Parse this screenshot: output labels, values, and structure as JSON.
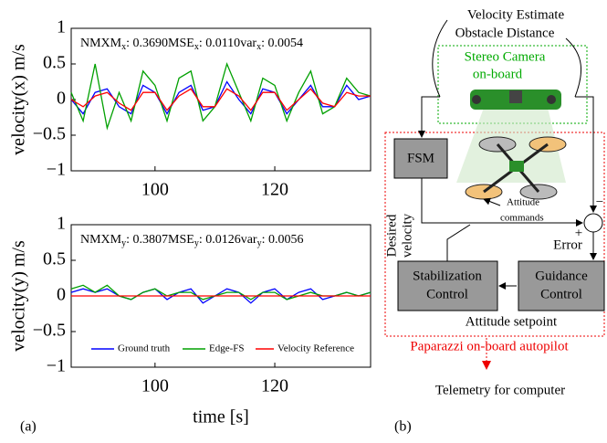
{
  "chart_data": [
    {
      "type": "line",
      "y_label": "velocity(x) m/s",
      "annotation": [
        {
          "name": "NMXM",
          "sub": "x",
          "value": ": 0.3690"
        },
        {
          "name": "MSE",
          "sub": "x",
          "value": ": 0.0110"
        },
        {
          "name": "var",
          "sub": "x",
          "value": ": 0.0054"
        }
      ],
      "x": [
        86,
        88,
        90,
        92,
        94,
        96,
        98,
        100,
        102,
        104,
        106,
        108,
        110,
        112,
        114,
        116,
        118,
        120,
        122,
        124,
        126,
        128,
        130,
        132,
        134,
        136
      ],
      "xlim": [
        86,
        136
      ],
      "xticks": [
        100,
        120
      ],
      "ylim": [
        -1,
        1
      ],
      "yticks": [
        {
          "value": -1,
          "label": "−1"
        },
        {
          "value": -0.5,
          "label": "−0.5"
        },
        0,
        0.5,
        1
      ],
      "series": [
        {
          "name": "Ground truth",
          "color": "#0000ff",
          "values": [
            0,
            -0.2,
            0.1,
            0.15,
            -0.1,
            -0.2,
            0.2,
            0.1,
            -0.2,
            0.1,
            0.2,
            -0.15,
            -0.1,
            0.25,
            0,
            -0.2,
            0.15,
            0.1,
            -0.2,
            0,
            0.2,
            -0.1,
            -0.1,
            0.2,
            0,
            0.05
          ]
        },
        {
          "name": "Edge-FS",
          "color": "#00a000",
          "values": [
            0.1,
            -0.3,
            0.5,
            -0.4,
            0.1,
            -0.3,
            0.4,
            0.2,
            -0.3,
            0.3,
            0.4,
            -0.3,
            -0.1,
            0.5,
            0.1,
            -0.3,
            0.3,
            0.2,
            -0.3,
            0.1,
            0.4,
            -0.2,
            -0.1,
            0.3,
            0.1,
            0.05
          ]
        },
        {
          "name": "Velocity Reference",
          "color": "#ff0000",
          "values": [
            0,
            -0.1,
            0.05,
            0.1,
            -0.05,
            -0.15,
            0.1,
            0.1,
            -0.15,
            0.05,
            0.15,
            -0.1,
            -0.1,
            0.15,
            0.05,
            -0.15,
            0.1,
            0.1,
            -0.15,
            0,
            0.15,
            -0.05,
            -0.1,
            0.1,
            0.05,
            0.05
          ]
        }
      ]
    },
    {
      "type": "line",
      "y_label": "velocity(y) m/s",
      "x_label": "time [s]",
      "legend": "lower center",
      "annotation": [
        {
          "name": "NMXM",
          "sub": "y",
          "value": ": 0.3807"
        },
        {
          "name": "MSE",
          "sub": "y",
          "value": ": 0.0126"
        },
        {
          "name": "var",
          "sub": "y",
          "value": ": 0.0056"
        }
      ],
      "x": [
        86,
        88,
        90,
        92,
        94,
        96,
        98,
        100,
        102,
        104,
        106,
        108,
        110,
        112,
        114,
        116,
        118,
        120,
        122,
        124,
        126,
        128,
        130,
        132,
        134,
        136
      ],
      "xlim": [
        86,
        136
      ],
      "xticks": [
        100,
        120
      ],
      "ylim": [
        -1,
        1
      ],
      "yticks": [
        {
          "value": -1,
          "label": "−1"
        },
        {
          "value": -0.5,
          "label": "−0.5"
        },
        0,
        0.5,
        1
      ],
      "series": [
        {
          "name": "Ground truth",
          "color": "#0000ff",
          "values": [
            0.05,
            0.1,
            0.05,
            0.1,
            0,
            -0.05,
            0.05,
            0.1,
            -0.05,
            0.05,
            0.1,
            -0.1,
            0,
            0.1,
            0.05,
            -0.1,
            0.05,
            0.1,
            -0.05,
            0.05,
            0.1,
            -0.05,
            0,
            0.05,
            0,
            0.05
          ]
        },
        {
          "name": "Edge-FS",
          "color": "#00a000",
          "values": [
            0.1,
            0.15,
            0.05,
            0.15,
            0,
            -0.05,
            0.05,
            0.1,
            0,
            0.05,
            0.05,
            -0.05,
            0,
            0.05,
            0.05,
            -0.05,
            0.05,
            0.05,
            -0.05,
            0,
            0.05,
            0,
            0,
            0.05,
            0,
            0.05
          ]
        },
        {
          "name": "Velocity Reference",
          "color": "#ff0000",
          "values": [
            0,
            0,
            0,
            0,
            0,
            0,
            0,
            0,
            0,
            0,
            0,
            0,
            0,
            0,
            0,
            0,
            0,
            0,
            0,
            0,
            0,
            0,
            0,
            0,
            0,
            0
          ]
        }
      ]
    }
  ],
  "panel_labels": [
    "(a)",
    "(b)"
  ],
  "diagram": {
    "outputs": [
      "Velocity Estimate",
      "Obstacle Distance"
    ],
    "camera": [
      "Stereo Camera",
      "on-board"
    ],
    "fsm": "FSM",
    "attitude_commands": [
      "Attitude",
      "commands"
    ],
    "desired_velocity": [
      "Desired",
      "velocity"
    ],
    "error": "Error",
    "plus": "+",
    "minus": "−",
    "stabilization": [
      "Stabilization",
      "Control"
    ],
    "guidance": [
      "Guidance",
      "Control"
    ],
    "attitude_setpoint": "Attitude setpoint",
    "autopilot": "Paparazzi on-board autopilot",
    "telemetry": "Telemetry for computer"
  }
}
